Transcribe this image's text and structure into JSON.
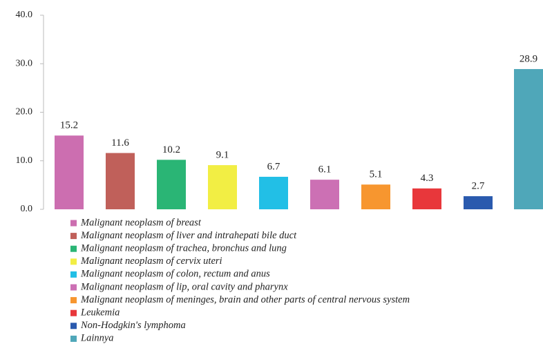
{
  "chart_data": {
    "type": "bar",
    "categories": [
      "Malignant neoplasm of breast",
      "Malignant neoplasm of liver and intrahepati bile duct",
      "Malignant neoplasm of trachea, bronchus and lung",
      "Malignant neoplasm of cervix uteri",
      "Malignant neoplasm of colon, rectum and anus",
      "Malignant neoplasm of lip, oral cavity and pharynx",
      "Malignant neoplasm of meninges, brain and other parts of central nervous system",
      "Leukemia",
      "Non-Hodgkin's lymphoma",
      "Lainnya"
    ],
    "values": [
      15.2,
      11.6,
      10.2,
      9.1,
      6.7,
      6.1,
      5.1,
      4.3,
      2.7,
      28.9
    ],
    "colors": [
      "#cc6eb0",
      "#c0605a",
      "#2ab575",
      "#f2ee44",
      "#22bfe6",
      "#cc70b4",
      "#f7962f",
      "#e8373b",
      "#2a5aae",
      "#4fa7b9"
    ],
    "ylim": [
      0,
      40
    ],
    "yticks": [
      {
        "value": 0,
        "label": "0.0"
      },
      {
        "value": 10,
        "label": "10.0"
      },
      {
        "value": 20,
        "label": "20.0"
      },
      {
        "value": 30,
        "label": "30.0"
      },
      {
        "value": 40,
        "label": "40.0"
      }
    ],
    "grid": false
  }
}
